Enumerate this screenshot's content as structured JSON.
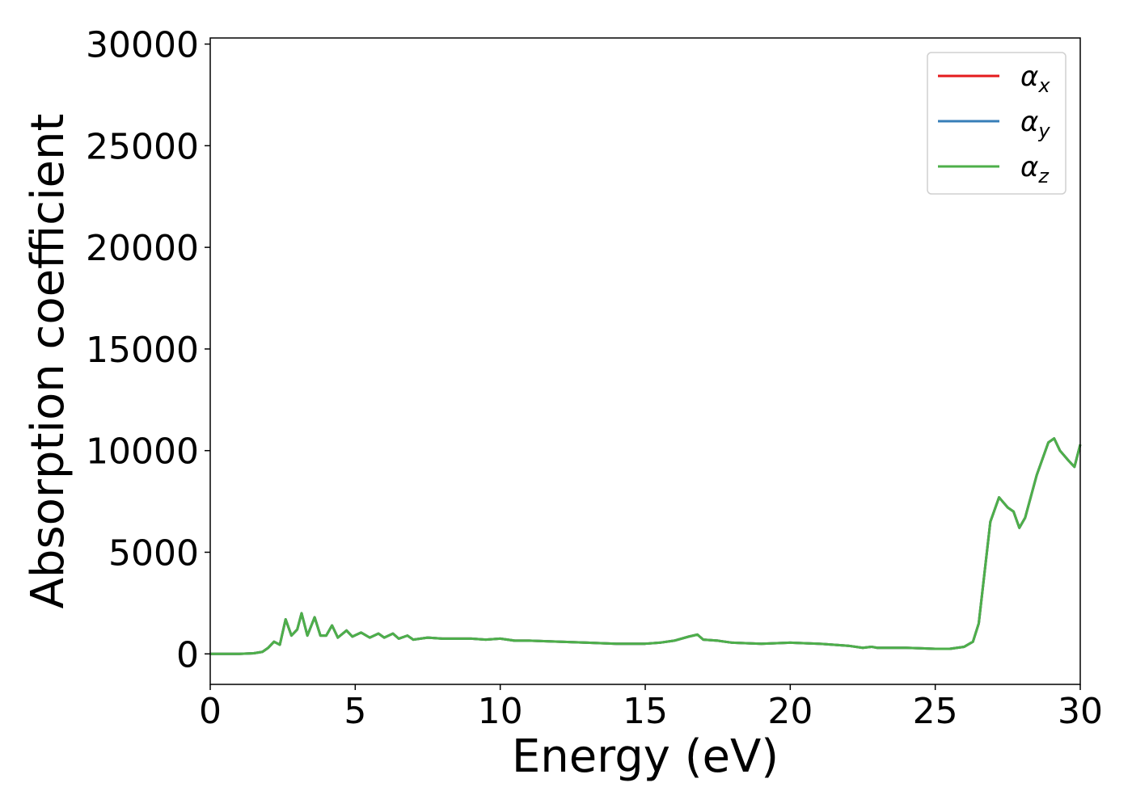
{
  "chart_data": {
    "type": "line",
    "xlabel": "Energy (eV)",
    "ylabel": "Absorption coefficient",
    "xlim": [
      0,
      30
    ],
    "xticks": [
      0,
      5,
      10,
      15,
      20,
      25,
      30
    ],
    "ylim": [
      -1500,
      30300
    ],
    "yticks": [
      0,
      5000,
      10000,
      15000,
      20000,
      25000,
      30000
    ],
    "legend": "upper right",
    "x": [
      0,
      1,
      1.5,
      1.8,
      2.0,
      2.2,
      2.4,
      2.6,
      2.8,
      3.0,
      3.15,
      3.35,
      3.6,
      3.8,
      4.0,
      4.2,
      4.4,
      4.7,
      4.9,
      5.2,
      5.5,
      5.8,
      6.0,
      6.3,
      6.5,
      6.8,
      7.0,
      7.5,
      8,
      9,
      9.5,
      10,
      10.5,
      11,
      12,
      13,
      14,
      15,
      15.5,
      16,
      16.5,
      16.8,
      17,
      17.5,
      18,
      19,
      20,
      21,
      22,
      22.5,
      22.8,
      23,
      24,
      25,
      25.5,
      26,
      26.3,
      26.5,
      26.7,
      26.9,
      27.2,
      27.5,
      27.7,
      27.9,
      28.1,
      28.5,
      28.9,
      29.1,
      29.3,
      29.6,
      29.8,
      30
    ],
    "series": [
      {
        "name": "αx",
        "color": "#e41a1c",
        "values": [
          0,
          0,
          30,
          100,
          300,
          600,
          450,
          1700,
          900,
          1200,
          2000,
          900,
          1800,
          900,
          900,
          1400,
          800,
          1150,
          850,
          1050,
          800,
          1000,
          800,
          1000,
          750,
          900,
          700,
          800,
          750,
          750,
          700,
          750,
          650,
          650,
          600,
          550,
          500,
          500,
          550,
          650,
          850,
          950,
          700,
          650,
          550,
          500,
          550,
          500,
          400,
          300,
          350,
          300,
          300,
          250,
          250,
          350,
          600,
          1500,
          4000,
          6500,
          7700,
          7200,
          7000,
          6200,
          6700,
          8800,
          10400,
          10600,
          10000,
          9500,
          9200,
          10300
        ]
      },
      {
        "name": "αy",
        "color": "#377eb8",
        "values": [
          0,
          0,
          30,
          100,
          300,
          600,
          450,
          1700,
          900,
          1200,
          2000,
          900,
          1800,
          900,
          900,
          1400,
          800,
          1150,
          850,
          1050,
          800,
          1000,
          800,
          1000,
          750,
          900,
          700,
          800,
          750,
          750,
          700,
          750,
          650,
          650,
          600,
          550,
          500,
          500,
          550,
          650,
          850,
          950,
          700,
          650,
          550,
          500,
          550,
          500,
          400,
          300,
          350,
          300,
          300,
          250,
          250,
          350,
          600,
          1500,
          4000,
          6500,
          7700,
          7200,
          7000,
          6200,
          6700,
          8800,
          10400,
          10600,
          10000,
          9500,
          9200,
          10300
        ]
      },
      {
        "name": "αz",
        "color": "#4daf4a",
        "values": [
          0,
          0,
          30,
          100,
          300,
          600,
          450,
          1700,
          900,
          1200,
          2000,
          900,
          1800,
          900,
          900,
          1400,
          800,
          1150,
          850,
          1050,
          800,
          1000,
          800,
          1000,
          750,
          900,
          700,
          800,
          750,
          750,
          700,
          750,
          650,
          650,
          600,
          550,
          500,
          500,
          550,
          650,
          850,
          950,
          700,
          650,
          550,
          500,
          550,
          500,
          400,
          300,
          350,
          300,
          300,
          250,
          250,
          350,
          600,
          1500,
          4000,
          6500,
          7700,
          7200,
          7000,
          6200,
          6700,
          8800,
          10400,
          10600,
          10000,
          9500,
          9200,
          10300
        ]
      }
    ]
  }
}
